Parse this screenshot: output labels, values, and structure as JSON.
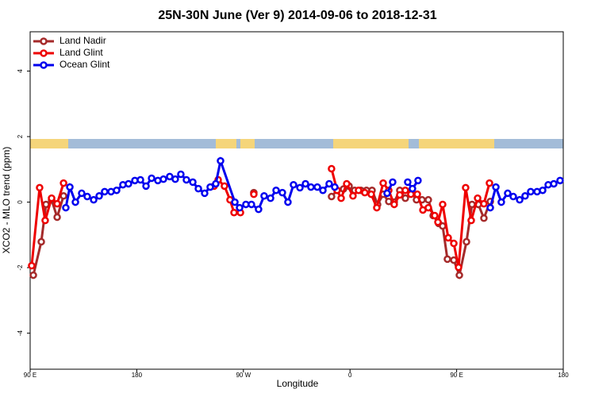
{
  "chart_data": {
    "type": "line",
    "title": "25N-30N June (Ver 9)   2014-09-06 to 2018-12-31",
    "x_label": "Longitude",
    "y_label": "XCO2 - MLO trend (ppm)",
    "xlim": [
      90,
      540
    ],
    "xticks": [
      {
        "value": 90,
        "label": "90 E"
      },
      180,
      {
        "value": 270,
        "label": "90 W"
      },
      {
        "value": 360,
        "label": "0"
      },
      {
        "value": 450,
        "label": "90 E"
      },
      {
        "value": 540,
        "label": "180"
      }
    ],
    "ylim": [
      -5.1,
      5.2
    ],
    "yticks": [
      -4,
      -2,
      0,
      2,
      4
    ],
    "legend": "top-left",
    "series": [
      {
        "name": "Land Nadir",
        "color": "#a52a2a",
        "x": [
          92.7,
          99.4,
          103.4,
          108.1,
          112.8,
          118.2,
          200,
          278.8,
          310,
          344.4,
          349.1,
          354.5,
          359.2,
          363.9,
          369.2,
          373.9,
          378.6,
          383.3,
          388,
          392.7,
          397.3,
          402,
          406.7,
          411.4,
          416.1,
          420.8,
          426.1,
          430.2,
          434.8,
          438.2,
          442.2,
          447.6,
          452.3,
          458.3,
          463,
          468.3,
          473,
          478.4
        ],
        "values": [
          -2.23,
          -1.21,
          -0.07,
          0.07,
          -0.46,
          0.19,
          null,
          0.29,
          null,
          0.17,
          0.36,
          0.4,
          0.49,
          0.36,
          0.36,
          0.36,
          0.36,
          -0.07,
          0.24,
          0.02,
          0,
          0.36,
          0.12,
          0.32,
          0.07,
          0.07,
          0.07,
          -0.41,
          -0.65,
          -0.73,
          -1.74,
          -1.77,
          -2.23,
          -1.21,
          -0.07,
          -0.07,
          -0.49,
          0.02
        ]
      },
      {
        "name": "Land Glint",
        "color": "#ee0000",
        "x": [
          91.3,
          98,
          102.7,
          108.1,
          112.8,
          118.2,
          180,
          245.3,
          248.7,
          254,
          258.7,
          262.1,
          267.5,
          272,
          278.8,
          310,
          344.4,
          349.1,
          352.5,
          357.2,
          362.5,
          367.2,
          372.5,
          377.9,
          382.6,
          388,
          392.7,
          397.3,
          402,
          406.7,
          411.4,
          416.8,
          421.5,
          426.1,
          431.5,
          434.2,
          438.2,
          442.9,
          447.6,
          451.6,
          457.6,
          462.3,
          467.7,
          473,
          477.7
        ],
        "values": [
          -1.94,
          0.44,
          -0.56,
          0.12,
          -0.05,
          0.58,
          null,
          0.49,
          0.68,
          0.49,
          0.07,
          -0.32,
          -0.32,
          null,
          0.24,
          null,
          1.02,
          0.36,
          0.12,
          0.56,
          0.19,
          0.36,
          0.29,
          0.24,
          -0.17,
          0.58,
          0.36,
          -0.07,
          0.22,
          0.36,
          0.24,
          0.24,
          -0.24,
          -0.17,
          -0.41,
          -0.61,
          -0.07,
          -1.09,
          -1.26,
          -1.99,
          0.44,
          -0.56,
          0.12,
          -0.05,
          0.58
        ]
      },
      {
        "name": "Ocean Glint",
        "color": "#0000ee",
        "x": [
          120.1,
          123.5,
          128.2,
          133.5,
          138.2,
          143.6,
          148.3,
          152.9,
          158.3,
          163,
          168.3,
          173,
          178.4,
          183.1,
          187.8,
          192.5,
          197.8,
          202.5,
          207.8,
          212.5,
          217.2,
          221.9,
          227.3,
          232,
          237.3,
          242,
          246.7,
          250.7,
          262.8,
          266.8,
          272.1,
          276.8,
          282.8,
          287.5,
          292.9,
          297.6,
          302.9,
          307.6,
          312.3,
          317.7,
          322.4,
          327,
          332.4,
          337.1,
          342.4,
          347.1,
          370,
          391.3,
          396,
          402,
          408.7,
          412.7,
          417.4,
          450,
          478.4,
          483.1,
          487.7,
          493.1,
          497.8,
          503.2,
          507.8,
          512.5,
          517.9,
          522.6,
          527.3,
          532,
          537.3
        ],
        "values": [
          -0.17,
          0.46,
          0,
          0.27,
          0.17,
          0.07,
          0.19,
          0.32,
          0.32,
          0.36,
          0.53,
          0.56,
          0.66,
          0.68,
          0.49,
          0.73,
          0.66,
          0.7,
          0.78,
          0.7,
          0.85,
          0.68,
          0.61,
          0.41,
          0.27,
          0.46,
          0.56,
          1.26,
          0,
          -0.17,
          -0.07,
          -0.07,
          -0.22,
          0.19,
          0.12,
          0.36,
          0.29,
          0,
          0.53,
          0.44,
          0.56,
          0.46,
          0.46,
          0.36,
          0.56,
          0.46,
          null,
          0.27,
          0.61,
          null,
          0.61,
          0.41,
          0.66,
          null,
          -0.17,
          0.46,
          0,
          0.27,
          0.17,
          0.07,
          0.19,
          0.32,
          0.32,
          0.36,
          0.53,
          0.56,
          0.66
        ]
      }
    ]
  }
}
